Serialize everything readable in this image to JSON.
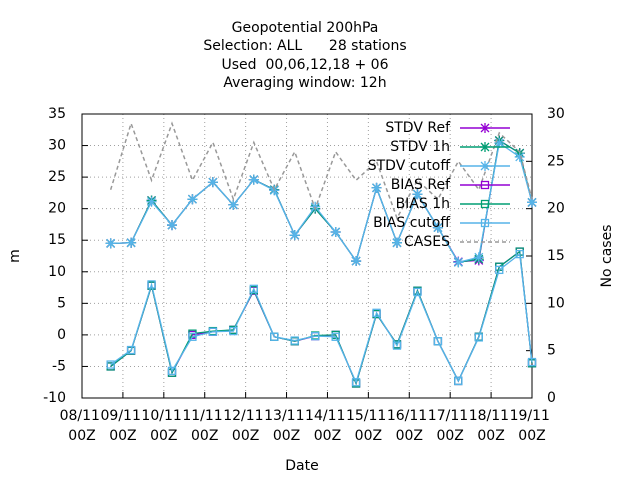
{
  "chart_data": {
    "type": "line",
    "title": [
      "Geopotential 200hPa",
      "Selection: ALL      28 stations",
      "Used  00,06,12,18 + 06",
      "Averaging window: 12h"
    ],
    "xlabel": "Date",
    "ylabel": "m",
    "y2label": "No cases",
    "x": [
      0.7,
      1.2,
      1.7,
      2.2,
      2.7,
      3.2,
      3.7,
      4.2,
      4.7,
      5.2,
      5.7,
      6.2,
      6.7,
      7.2,
      7.7,
      8.2,
      8.7,
      9.2,
      9.7,
      10.2,
      10.7,
      11.0
    ],
    "xlim": [
      0,
      11
    ],
    "xticks": [
      {
        "value": 0,
        "label": "08/11 00Z"
      },
      {
        "value": 1,
        "label": "09/11 00Z"
      },
      {
        "value": 2,
        "label": "10/11 00Z"
      },
      {
        "value": 3,
        "label": "11/11 00Z"
      },
      {
        "value": 4,
        "label": "12/11 00Z"
      },
      {
        "value": 5,
        "label": "13/11 00Z"
      },
      {
        "value": 6,
        "label": "14/11 00Z"
      },
      {
        "value": 7,
        "label": "15/11 00Z"
      },
      {
        "value": 8,
        "label": "16/11 00Z"
      },
      {
        "value": 9,
        "label": "17/11 00Z"
      },
      {
        "value": 10,
        "label": "18/11 00Z"
      },
      {
        "value": 11,
        "label": "19/11 00Z"
      }
    ],
    "ylim": [
      -10,
      35
    ],
    "yticks": [
      -10,
      -5,
      0,
      5,
      10,
      15,
      20,
      25,
      30,
      35
    ],
    "y2lim": [
      0,
      30
    ],
    "y2ticks": [
      0,
      5,
      10,
      15,
      20,
      25,
      30
    ],
    "grid": true,
    "legend": "upper right",
    "series": [
      {
        "name": "STDV Ref",
        "color": "#9400d3",
        "marker": "star",
        "values": [
          14.5,
          14.6,
          21.3,
          17.4,
          21.5,
          24.2,
          20.6,
          24.6,
          23.0,
          15.8,
          20.0,
          16.3,
          11.7,
          23.3,
          14.6,
          22.3,
          17.0,
          11.6,
          11.8,
          30.8,
          28.8,
          21.0
        ]
      },
      {
        "name": "STDV 1h",
        "color": "#009e73",
        "marker": "star",
        "values": [
          14.5,
          14.6,
          21.3,
          17.4,
          21.5,
          24.2,
          20.6,
          24.6,
          23.0,
          15.8,
          20.0,
          16.3,
          11.7,
          23.3,
          14.6,
          22.3,
          17.0,
          11.5,
          12.0,
          30.8,
          28.8,
          21.0
        ]
      },
      {
        "name": "STDV cutoff",
        "color": "#56b4e9",
        "marker": "star",
        "values": [
          14.5,
          14.6,
          21.1,
          17.4,
          21.5,
          24.2,
          20.6,
          24.6,
          22.9,
          15.8,
          20.3,
          16.3,
          11.7,
          23.3,
          14.6,
          22.3,
          17.0,
          11.5,
          12.3,
          30.4,
          28.2,
          21.0
        ]
      },
      {
        "name": "BIAS Ref",
        "color": "#9400d3",
        "marker": "square",
        "values": [
          -5.0,
          -2.5,
          7.8,
          -6.0,
          0.0,
          0.5,
          0.8,
          7.0,
          -0.3,
          -1.0,
          -0.2,
          0.0,
          -7.7,
          3.3,
          -1.5,
          7.0,
          -1.0,
          -7.3,
          -0.3,
          10.8,
          13.2,
          -4.5
        ]
      },
      {
        "name": "BIAS 1h",
        "color": "#009e73",
        "marker": "square",
        "values": [
          -5.0,
          -2.5,
          7.8,
          -6.0,
          0.2,
          0.6,
          0.8,
          7.1,
          -0.3,
          -1.0,
          -0.1,
          0.0,
          -7.7,
          3.3,
          -1.5,
          7.0,
          -1.0,
          -7.3,
          -0.3,
          10.8,
          13.2,
          -4.5
        ]
      },
      {
        "name": "BIAS cutoff",
        "color": "#56b4e9",
        "marker": "square",
        "values": [
          -4.7,
          -2.4,
          8.0,
          -5.7,
          -0.3,
          0.5,
          0.6,
          7.3,
          -0.3,
          -0.9,
          -0.2,
          -0.3,
          -7.5,
          3.5,
          -1.7,
          6.8,
          -1.0,
          -7.3,
          -0.4,
          10.3,
          12.8,
          -4.3
        ]
      },
      {
        "name": "CASES",
        "color": "#999999",
        "marker": "none",
        "dash": true,
        "axis": "y2",
        "values": [
          22,
          29,
          23,
          29,
          23,
          27,
          21,
          27,
          22,
          26,
          20,
          26,
          23,
          25,
          19,
          23,
          21,
          25,
          22,
          28,
          26,
          21
        ]
      }
    ]
  }
}
